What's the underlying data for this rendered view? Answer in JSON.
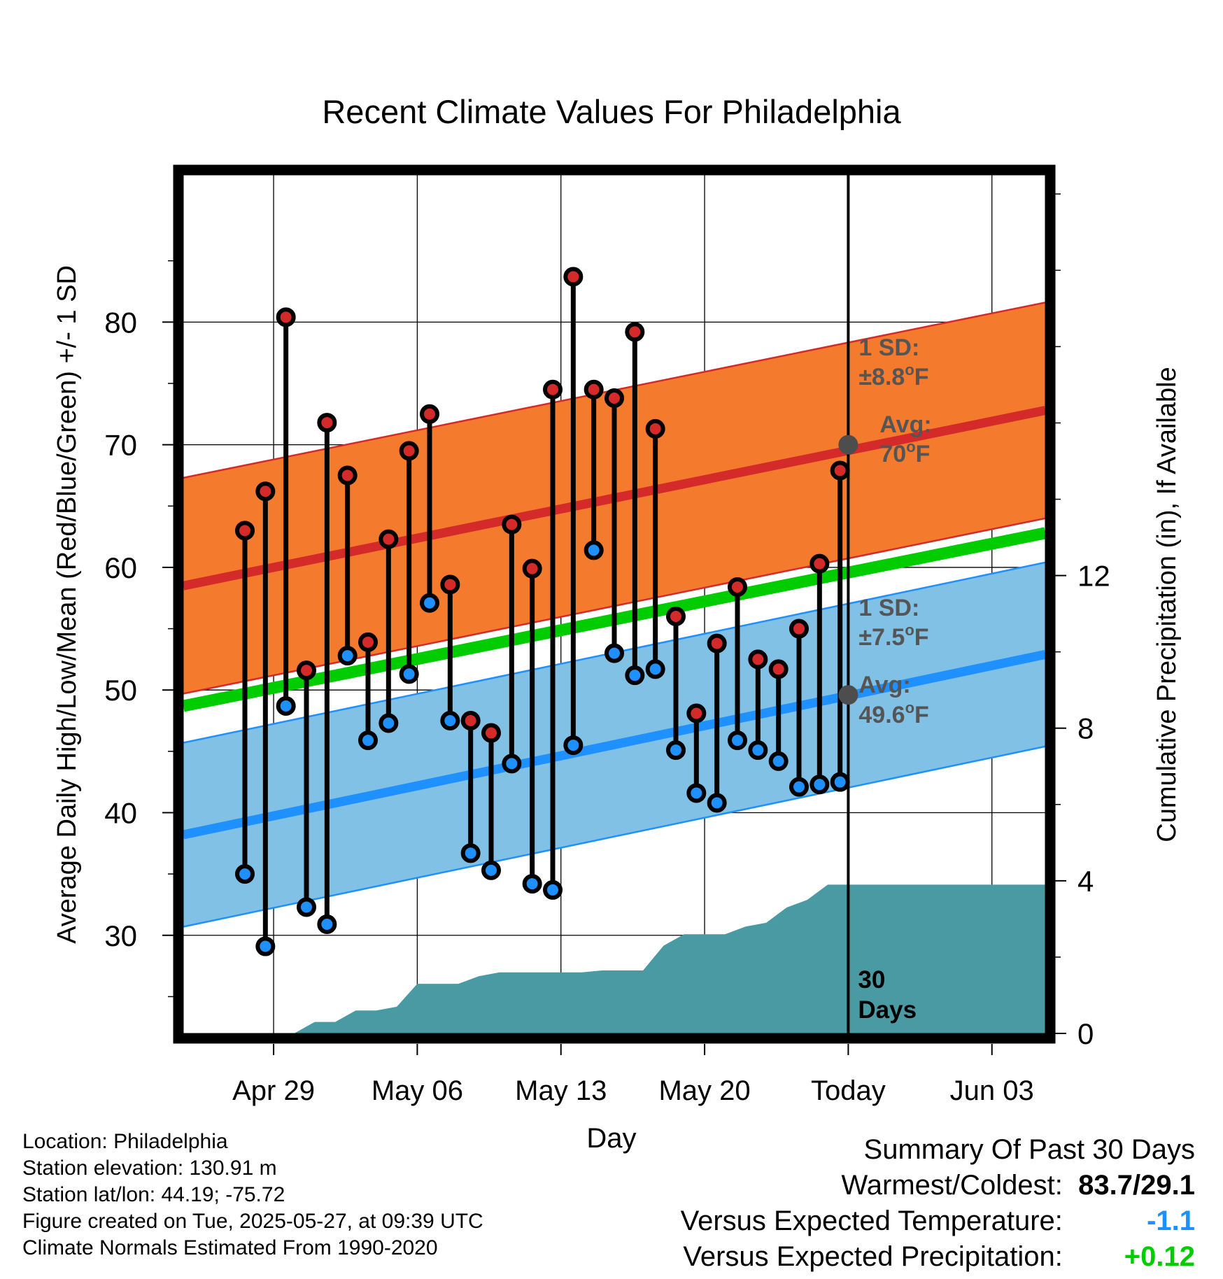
{
  "colors": {
    "high_marker": "#d42a2a",
    "low_marker": "#1e90ff",
    "high_band": "#f47b2e",
    "high_band_edge": "#d42a2a",
    "low_band": "#82c1e6",
    "low_band_edge": "#1e90ff",
    "mean_line": "#00cc00",
    "precip_fill": "#4a9aa4",
    "annotation_text": "#555555",
    "temp_anomaly": "#1e90ff",
    "precip_anomaly": "#00cc00"
  },
  "chart_data": {
    "type": "line",
    "title": "Recent Climate Values For Philadelphia",
    "xlabel": "Day",
    "ylabel_left": "Average Daily High/Low/Mean (Red/Blue/Green) +/- 1 SD",
    "ylabel_right": "Cumulative Precipitation (in), If Available",
    "x_range_days_rel_today": [
      -32.4,
      9.6
    ],
    "x_ticks": [
      {
        "day": -28,
        "label": "Apr 29"
      },
      {
        "day": -21,
        "label": "May 06"
      },
      {
        "day": -14,
        "label": "May 13"
      },
      {
        "day": -7,
        "label": "May 20"
      },
      {
        "day": 0,
        "label": "Today"
      },
      {
        "day": 7,
        "label": "Jun 03"
      }
    ],
    "y_left": {
      "min": 22,
      "max": 92,
      "ticks": [
        30,
        40,
        50,
        60,
        70,
        80
      ]
    },
    "y_right": {
      "min": 0,
      "max": 22.5,
      "ticks": [
        0,
        4,
        8,
        12
      ]
    },
    "grid": true,
    "daily_highs_lows": [
      {
        "date": "Apr 27",
        "high": 63.0,
        "low": 35.0
      },
      {
        "date": "Apr 28",
        "high": 66.2,
        "low": 29.1
      },
      {
        "date": "Apr 29",
        "high": 80.4,
        "low": 48.7
      },
      {
        "date": "Apr 30",
        "high": 51.6,
        "low": 32.3
      },
      {
        "date": "May 01",
        "high": 71.8,
        "low": 30.9
      },
      {
        "date": "May 02",
        "high": 67.5,
        "low": 52.8
      },
      {
        "date": "May 03",
        "high": 53.9,
        "low": 45.9
      },
      {
        "date": "May 04",
        "high": 62.3,
        "low": 47.3
      },
      {
        "date": "May 05",
        "high": 69.5,
        "low": 51.3
      },
      {
        "date": "May 06",
        "high": 72.5,
        "low": 57.1
      },
      {
        "date": "May 07",
        "high": 58.6,
        "low": 47.5
      },
      {
        "date": "May 08",
        "high": 47.5,
        "low": 36.7
      },
      {
        "date": "May 09",
        "high": 46.5,
        "low": 35.3
      },
      {
        "date": "May 10",
        "high": 63.5,
        "low": 44.0
      },
      {
        "date": "May 11",
        "high": 59.9,
        "low": 34.2
      },
      {
        "date": "May 12",
        "high": 74.5,
        "low": 33.7
      },
      {
        "date": "May 13",
        "high": 83.7,
        "low": 45.5
      },
      {
        "date": "May 14",
        "high": 74.5,
        "low": 61.4
      },
      {
        "date": "May 15",
        "high": 73.8,
        "low": 53.0
      },
      {
        "date": "May 16",
        "high": 79.2,
        "low": 51.2
      },
      {
        "date": "May 17",
        "high": 71.3,
        "low": 51.7
      },
      {
        "date": "May 18",
        "high": 56.0,
        "low": 45.1
      },
      {
        "date": "May 19",
        "high": 48.1,
        "low": 41.6
      },
      {
        "date": "May 20",
        "high": 53.8,
        "low": 40.8
      },
      {
        "date": "May 21",
        "high": 58.4,
        "low": 45.9
      },
      {
        "date": "May 22",
        "high": 52.5,
        "low": 45.1
      },
      {
        "date": "May 23",
        "high": 51.7,
        "low": 44.2
      },
      {
        "date": "May 24",
        "high": 55.0,
        "low": 42.1
      },
      {
        "date": "May 25",
        "high": 60.3,
        "low": 42.3
      },
      {
        "date": "May 26",
        "high": 67.9,
        "low": 42.5
      }
    ],
    "normal_high": {
      "start": 58.5,
      "end": 72.8,
      "sd": 8.8
    },
    "normal_low": {
      "start": 38.2,
      "end": 52.9,
      "sd": 7.5
    },
    "normal_mean": {
      "start": 48.7,
      "end": 62.8
    },
    "today_avg_high": 70,
    "today_avg_low": 49.6,
    "cumulative_precip": [
      {
        "day": -28,
        "value": 0.0
      },
      {
        "day": -27,
        "value": 0.0
      },
      {
        "day": -26,
        "value": 0.3
      },
      {
        "day": -25,
        "value": 0.3
      },
      {
        "day": -24,
        "value": 0.6
      },
      {
        "day": -23,
        "value": 0.6
      },
      {
        "day": -22,
        "value": 0.7
      },
      {
        "day": -21,
        "value": 1.3
      },
      {
        "day": -20,
        "value": 1.3
      },
      {
        "day": -19,
        "value": 1.3
      },
      {
        "day": -18,
        "value": 1.5
      },
      {
        "day": -17,
        "value": 1.6
      },
      {
        "day": -16,
        "value": 1.6
      },
      {
        "day": -15,
        "value": 1.6
      },
      {
        "day": -14,
        "value": 1.6
      },
      {
        "day": -13,
        "value": 1.6
      },
      {
        "day": -12,
        "value": 1.65
      },
      {
        "day": -11,
        "value": 1.65
      },
      {
        "day": -10,
        "value": 1.65
      },
      {
        "day": -9,
        "value": 2.3
      },
      {
        "day": -8,
        "value": 2.6
      },
      {
        "day": -7,
        "value": 2.6
      },
      {
        "day": -6,
        "value": 2.6
      },
      {
        "day": -5,
        "value": 2.8
      },
      {
        "day": -4,
        "value": 2.9
      },
      {
        "day": -3,
        "value": 3.3
      },
      {
        "day": -2,
        "value": 3.5
      },
      {
        "day": -1,
        "value": 3.9
      },
      {
        "day": 0,
        "value": 3.9
      },
      {
        "day": 9.6,
        "value": 3.9
      }
    ]
  },
  "annotations": {
    "high_sd_line1": "1 SD:",
    "high_sd_line2": "±8.8",
    "high_avg_line1": "Avg:",
    "high_avg_line2": "70",
    "low_sd_line1": "1 SD:",
    "low_sd_line2": "±7.5",
    "low_avg_line1": "Avg:",
    "low_avg_line2": "49.6",
    "degree_symbol": "o",
    "unit_letter": "F",
    "period_line1": "30",
    "period_line2": "Days"
  },
  "info": {
    "location": "Location: Philadelphia",
    "elevation": "Station elevation: 130.91 m",
    "latlon": "Station lat/lon: 44.19; -75.72",
    "created": "Figure created on Tue, 2025-05-27, at 09:39 UTC",
    "normals": "Climate Normals Estimated From 1990-2020"
  },
  "summary": {
    "title": "Summary Of Past 30 Days",
    "warmest_coldest_label": "Warmest/Coldest:",
    "warmest_coldest_value": "83.7/29.1",
    "temp_label": "Versus Expected Temperature:",
    "temp_value": "-1.1",
    "precip_label": "Versus Expected Precipitation:",
    "precip_value": "+0.12"
  }
}
